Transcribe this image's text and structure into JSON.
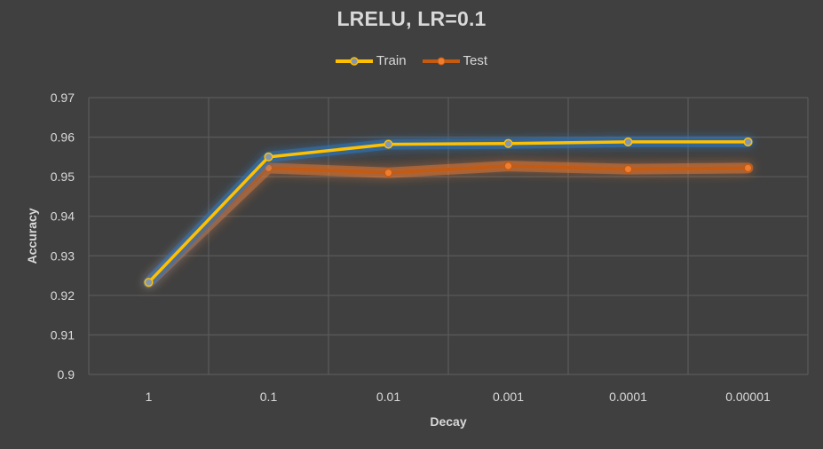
{
  "chart_data": {
    "type": "line",
    "title": "LRELU, LR=0.1",
    "xlabel": "Decay",
    "ylabel": "Accuracy",
    "categories": [
      "1",
      "0.1",
      "0.01",
      "0.001",
      "0.0001",
      "0.00001"
    ],
    "ylim": [
      0.9,
      0.97
    ],
    "yticks": [
      "0.9",
      "0.91",
      "0.92",
      "0.93",
      "0.94",
      "0.95",
      "0.96",
      "0.97"
    ],
    "grid": true,
    "legend_position": "top",
    "series": [
      {
        "name": "Train",
        "color": "#ffc000",
        "values": [
          0.9233,
          0.955,
          0.9582,
          0.9584,
          0.9588,
          0.9588
        ]
      },
      {
        "name": "Test",
        "color": "#c55a11",
        "values": [
          0.9232,
          0.9522,
          0.951,
          0.9527,
          0.9519,
          0.9522
        ]
      }
    ]
  }
}
